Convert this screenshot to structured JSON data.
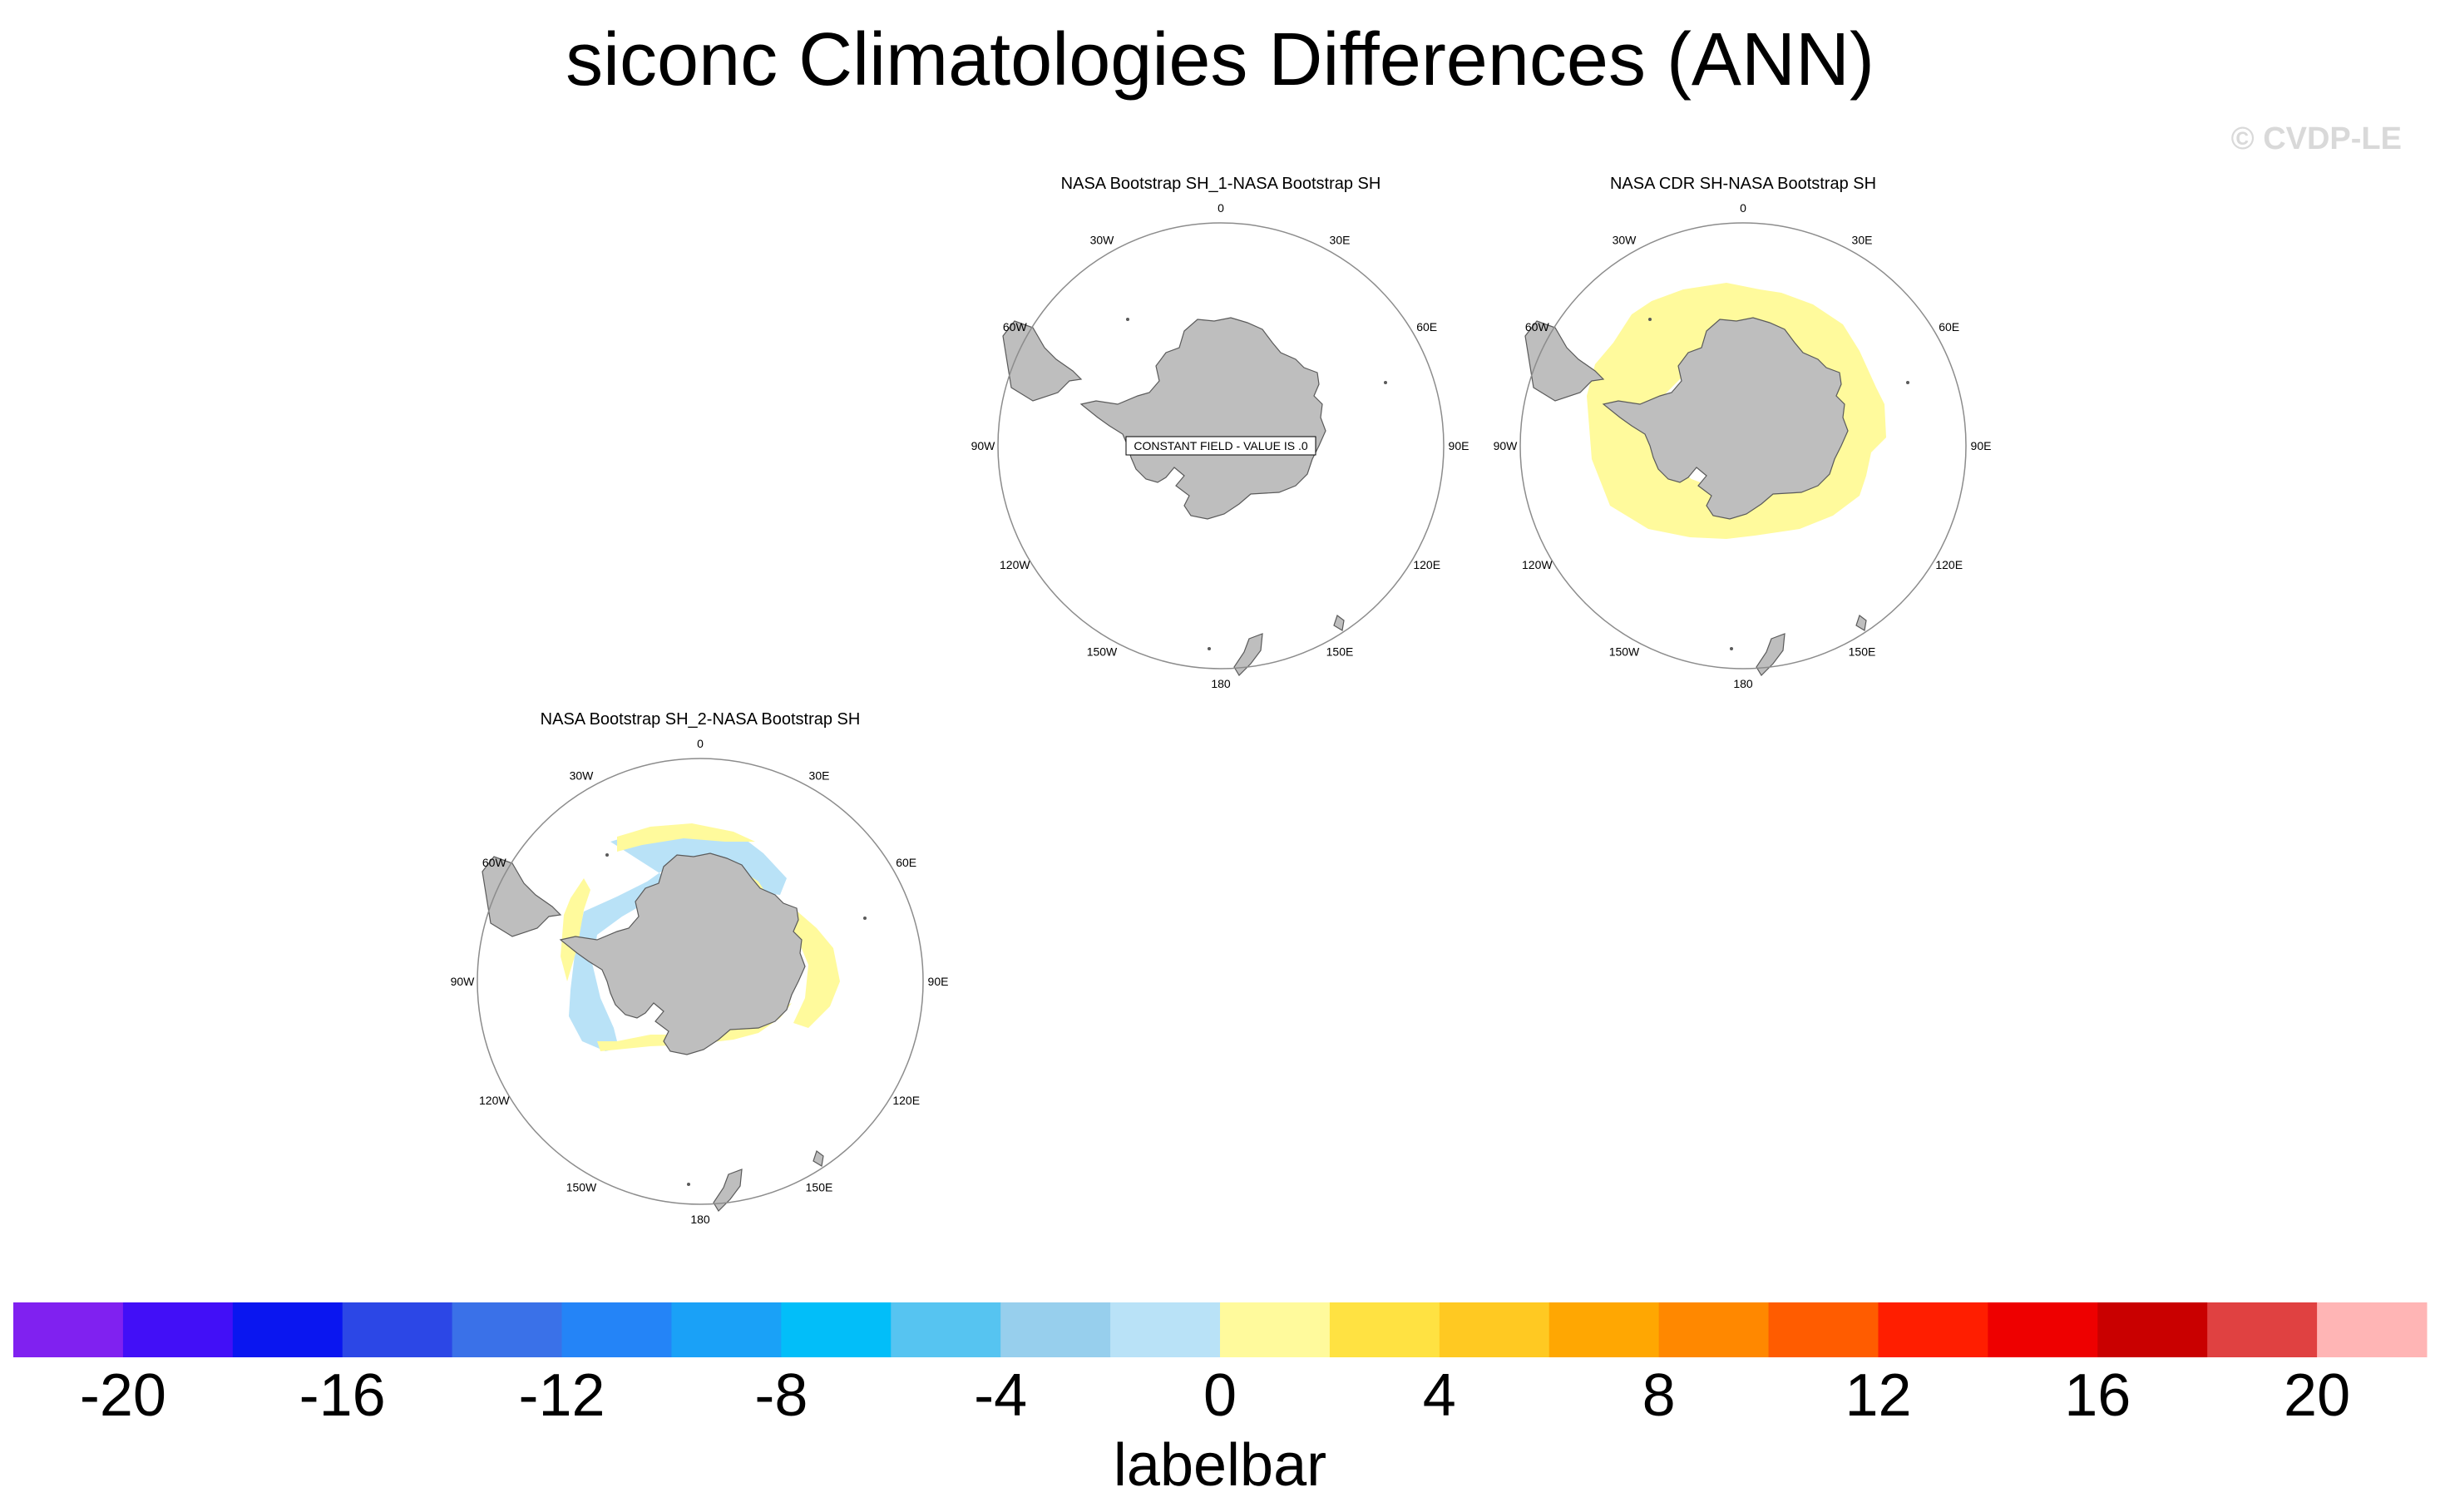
{
  "title": "siconc Climatologies Differences (ANN)",
  "copyright": "© CVDP-LE",
  "chart_data": {
    "type": "heatmap",
    "projection": "south-polar-stereographic",
    "panels": [
      {
        "id": "panel1",
        "title": "NASA Bootstrap SH_1-NASA Bootstrap SH",
        "constant_field": true,
        "annotation": "CONSTANT FIELD - VALUE IS .0",
        "field": "none",
        "longitude_labels": [
          "0",
          "30E",
          "60E",
          "90E",
          "120E",
          "150E",
          "180",
          "150W",
          "120W",
          "90W",
          "60W",
          "30W"
        ]
      },
      {
        "id": "panel2",
        "title": "NASA CDR SH-NASA Bootstrap SH",
        "constant_field": false,
        "annotation": "",
        "field": "ring positive 0 to 2",
        "longitude_labels": [
          "0",
          "30E",
          "60E",
          "90E",
          "120E",
          "150E",
          "180",
          "150W",
          "120W",
          "90W",
          "60W",
          "30W"
        ]
      },
      {
        "id": "panel3",
        "title": "NASA Bootstrap SH_2-NASA Bootstrap SH",
        "constant_field": false,
        "annotation": "",
        "field": "mixed -2 to 2",
        "longitude_labels": [
          "0",
          "30E",
          "60E",
          "90E",
          "120E",
          "150E",
          "180",
          "150W",
          "120W",
          "90W",
          "60W",
          "30W"
        ]
      }
    ],
    "colorbar": {
      "title": "labelbar",
      "levels": [
        -20,
        -18,
        -16,
        -14,
        -12,
        -10,
        -8,
        -6,
        -4,
        -2,
        0,
        2,
        4,
        6,
        8,
        10,
        12,
        14,
        16,
        18,
        20
      ],
      "tick_labels": [
        "-20",
        "-16",
        "-12",
        "-8",
        "-4",
        "0",
        "4",
        "8",
        "12",
        "16",
        "20"
      ],
      "colors": [
        "#8021f0",
        "#420ff7",
        "#0a16f0",
        "#2c47e6",
        "#3a71e8",
        "#2484f7",
        "#1aa1f7",
        "#02bef9",
        "#56c4f1",
        "#97cfed",
        "#b9e2f7",
        "#fffa9c",
        "#ffe242",
        "#ffc922",
        "#ffa702",
        "#ff8800",
        "#ff5c00",
        "#ff1e00",
        "#ee0000",
        "#c90000",
        "#e04141",
        "#ffb5b5"
      ]
    },
    "colors": {
      "land": "#bebebe",
      "coast": "#5a5a5a",
      "circle": "#8c8c8c"
    }
  }
}
